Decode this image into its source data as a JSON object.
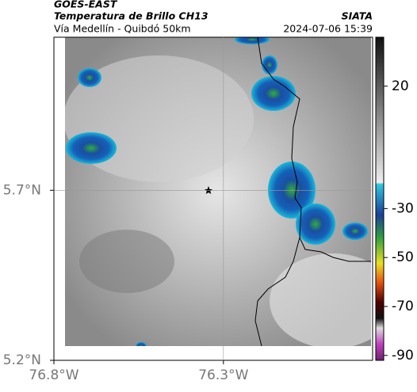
{
  "header": {
    "satellite": "GOES-EAST",
    "product": "Temperatura de Brillo CH13",
    "source": "SIATA",
    "region": "Vía Medellín - Quibdó 50km",
    "datetime": "2024-07-06 15:39"
  },
  "map": {
    "xlim": [
      -76.8,
      -75.86
    ],
    "ylim": [
      5.2,
      6.15
    ],
    "xticks": [
      {
        "value": -76.8,
        "label": "76.8°W"
      },
      {
        "value": -76.3,
        "label": "76.3°W"
      }
    ],
    "yticks": [
      {
        "value": 5.7,
        "label": "5.7°N"
      },
      {
        "value": 5.2,
        "label": "5.2°N"
      }
    ],
    "grid": true
  },
  "colorbar": {
    "lim": [
      -92,
      40
    ],
    "ticks": [
      20,
      -30,
      -50,
      -70,
      -90
    ]
  }
}
